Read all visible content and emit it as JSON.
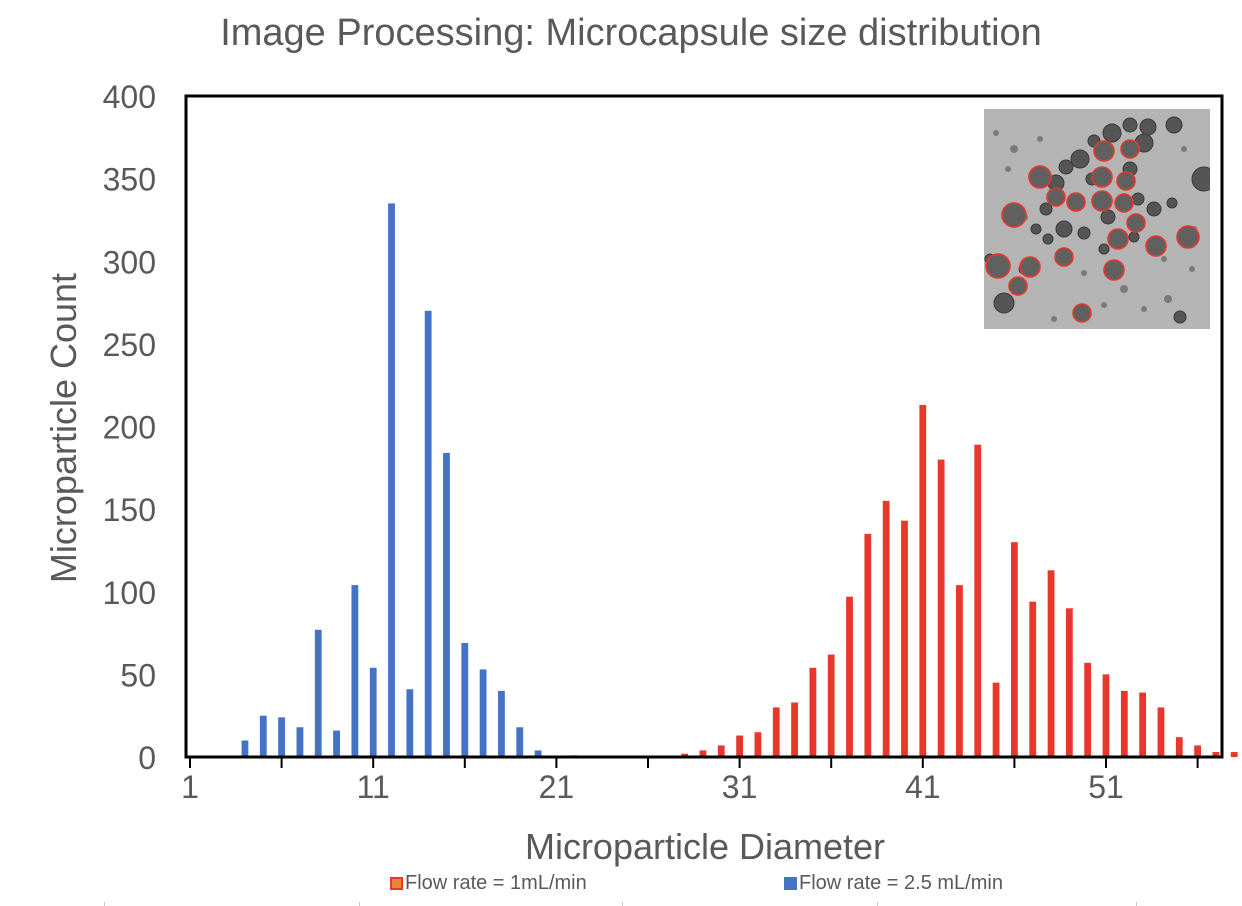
{
  "chart_data": {
    "type": "bar",
    "title": "Image Processing: Microcapsule size distribution",
    "xlabel": "Microparticle Diameter",
    "ylabel": "Microparticle Count",
    "ylim": [
      0,
      400
    ],
    "yticks": [
      0,
      50,
      100,
      150,
      200,
      250,
      300,
      350,
      400
    ],
    "xticks": [
      "1",
      "11",
      "21",
      "31",
      "41",
      "51"
    ],
    "xlim": [
      1,
      58
    ],
    "grid": false,
    "legend_position": "bottom",
    "series": [
      {
        "name": "Flow rate = 1mL/min",
        "color": "#e8382b",
        "x": [
          28,
          29,
          30,
          31,
          32,
          33,
          34,
          35,
          36,
          37,
          38,
          39,
          40,
          41,
          42,
          43,
          44,
          45,
          46,
          47,
          48,
          49,
          50,
          51,
          52,
          53,
          54,
          55,
          56,
          57,
          58
        ],
        "values": [
          2,
          4,
          7,
          13,
          15,
          30,
          33,
          54,
          62,
          97,
          135,
          155,
          143,
          213,
          180,
          104,
          189,
          45,
          130,
          94,
          113,
          90,
          57,
          50,
          40,
          39,
          30,
          12,
          7,
          3,
          3
        ]
      },
      {
        "name": "Flow rate = 2.5 mL/min",
        "color": "#4472c4",
        "x": [
          4,
          5,
          6,
          7,
          8,
          9,
          10,
          11,
          12,
          13,
          14,
          15,
          16,
          17,
          18,
          19,
          20,
          21,
          22
        ],
        "values": [
          10,
          25,
          24,
          18,
          77,
          16,
          104,
          54,
          335,
          41,
          270,
          184,
          69,
          53,
          40,
          18,
          4,
          0,
          1
        ]
      }
    ]
  },
  "inset": {
    "icon": "microcapsule-micrograph"
  }
}
